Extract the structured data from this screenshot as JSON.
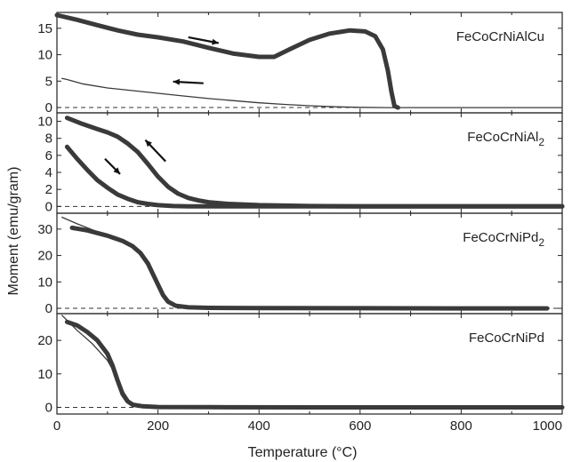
{
  "chart_data": {
    "type": "line",
    "xlabel": "Temperature (°C)",
    "ylabel": "Moment (emu/gram)",
    "xlim": [
      0,
      1000
    ],
    "xticks": [
      0,
      200,
      400,
      600,
      800,
      1000
    ],
    "grid": false,
    "panels": [
      {
        "label": "FeCoCrNiAlCu",
        "label_main": "FeCoCrNiAlCu",
        "label_sub": "",
        "ylim": [
          -1,
          18
        ],
        "yticks": [
          0,
          5,
          10,
          15
        ],
        "arrows": [
          {
            "from": [
              260,
              13.3
            ],
            "to": [
              320,
              12.2
            ]
          },
          {
            "from": [
              290,
              4.6
            ],
            "to": [
              230,
              4.9
            ]
          }
        ],
        "series": [
          {
            "style": "thick",
            "x": [
              0,
              40,
              80,
              120,
              160,
              200,
              250,
              300,
              350,
              400,
              430,
              460,
              500,
              540,
              580,
              610,
              630,
              645,
              655,
              662,
              668,
              675
            ],
            "y": [
              17.5,
              16.6,
              15.6,
              14.6,
              13.8,
              13.3,
              12.5,
              11.3,
              10.2,
              9.6,
              9.6,
              11.0,
              12.8,
              14.0,
              14.6,
              14.4,
              13.5,
              11.0,
              7.0,
              3.0,
              0.3,
              0.0
            ]
          },
          {
            "style": "thin",
            "x": [
              10,
              20,
              50,
              100,
              150,
              200,
              250,
              300,
              350,
              400,
              450,
              500,
              550,
              600,
              650,
              1000
            ],
            "y": [
              5.5,
              5.3,
              4.5,
              3.7,
              3.2,
              2.7,
              2.2,
              1.7,
              1.3,
              0.9,
              0.6,
              0.35,
              0.15,
              0.05,
              0.0,
              0.0
            ]
          }
        ]
      },
      {
        "label": "FeCoCrNiAl2",
        "label_main": "FeCoCrNiAl",
        "label_sub": "2",
        "ylim": [
          -0.8,
          11
        ],
        "yticks": [
          0,
          2,
          4,
          6,
          8,
          10
        ],
        "arrows": [
          {
            "from": [
              95,
              5.6
            ],
            "to": [
              125,
              3.8
            ]
          },
          {
            "from": [
              215,
              5.3
            ],
            "to": [
              175,
              7.8
            ]
          }
        ],
        "series": [
          {
            "style": "thick",
            "x": [
              20,
              40,
              60,
              80,
              100,
              120,
              140,
              160,
              180,
              200,
              230,
              260,
              300,
              1000
            ],
            "y": [
              7.0,
              5.6,
              4.3,
              3.1,
              2.2,
              1.4,
              0.9,
              0.5,
              0.3,
              0.15,
              0.05,
              0.0,
              0.0,
              0.0
            ]
          },
          {
            "style": "thick",
            "x": [
              20,
              50,
              80,
              100,
              120,
              140,
              160,
              180,
              200,
              220,
              240,
              260,
              280,
              300,
              340,
              400,
              500,
              600,
              800,
              1000
            ],
            "y": [
              10.4,
              9.7,
              9.1,
              8.7,
              8.2,
              7.4,
              6.4,
              5.0,
              3.5,
              2.3,
              1.5,
              1.0,
              0.7,
              0.5,
              0.3,
              0.15,
              0.05,
              0.0,
              0.0,
              0.0
            ]
          }
        ]
      },
      {
        "label": "FeCoCrNiPd2",
        "label_main": "FeCoCrNiPd",
        "label_sub": "2",
        "ylim": [
          -2,
          36
        ],
        "yticks": [
          0,
          10,
          20,
          30
        ],
        "arrows": [],
        "series": [
          {
            "style": "thin",
            "x": [
              10,
              40,
              80,
              120
            ],
            "y": [
              34.5,
              32.0,
              29.0,
              26.0
            ]
          },
          {
            "style": "thick",
            "x": [
              30,
              60,
              100,
              130,
              150,
              165,
              180,
              190,
              200,
              210,
              220,
              235,
              260,
              300,
              400,
              600,
              800,
              970
            ],
            "y": [
              30.5,
              29.5,
              27.5,
              25.5,
              23.5,
              21.0,
              17.0,
              13.0,
              9.0,
              5.0,
              2.5,
              1.0,
              0.4,
              0.2,
              0.1,
              0.05,
              0.0,
              0.0
            ]
          }
        ]
      },
      {
        "label": "FeCoCrNiPd",
        "label_main": "FeCoCrNiPd",
        "label_sub": "",
        "ylim": [
          -2,
          28
        ],
        "yticks": [
          0,
          10,
          20
        ],
        "arrows": [],
        "series": [
          {
            "style": "thin",
            "x": [
              10,
              40,
              70,
              100,
              115,
              130,
              145,
              160
            ],
            "y": [
              27.5,
              23.0,
              19.0,
              14.0,
              10.0,
              5.0,
              1.5,
              0.5
            ]
          },
          {
            "style": "thick",
            "x": [
              20,
              40,
              60,
              80,
              100,
              110,
              120,
              130,
              140,
              150,
              170,
              200,
              300,
              500,
              800,
              1000
            ],
            "y": [
              25.5,
              24.5,
              22.5,
              20.0,
              16.0,
              12.5,
              8.0,
              4.0,
              1.8,
              0.8,
              0.3,
              0.1,
              0.05,
              0.0,
              0.0,
              0.0
            ]
          }
        ]
      }
    ]
  }
}
